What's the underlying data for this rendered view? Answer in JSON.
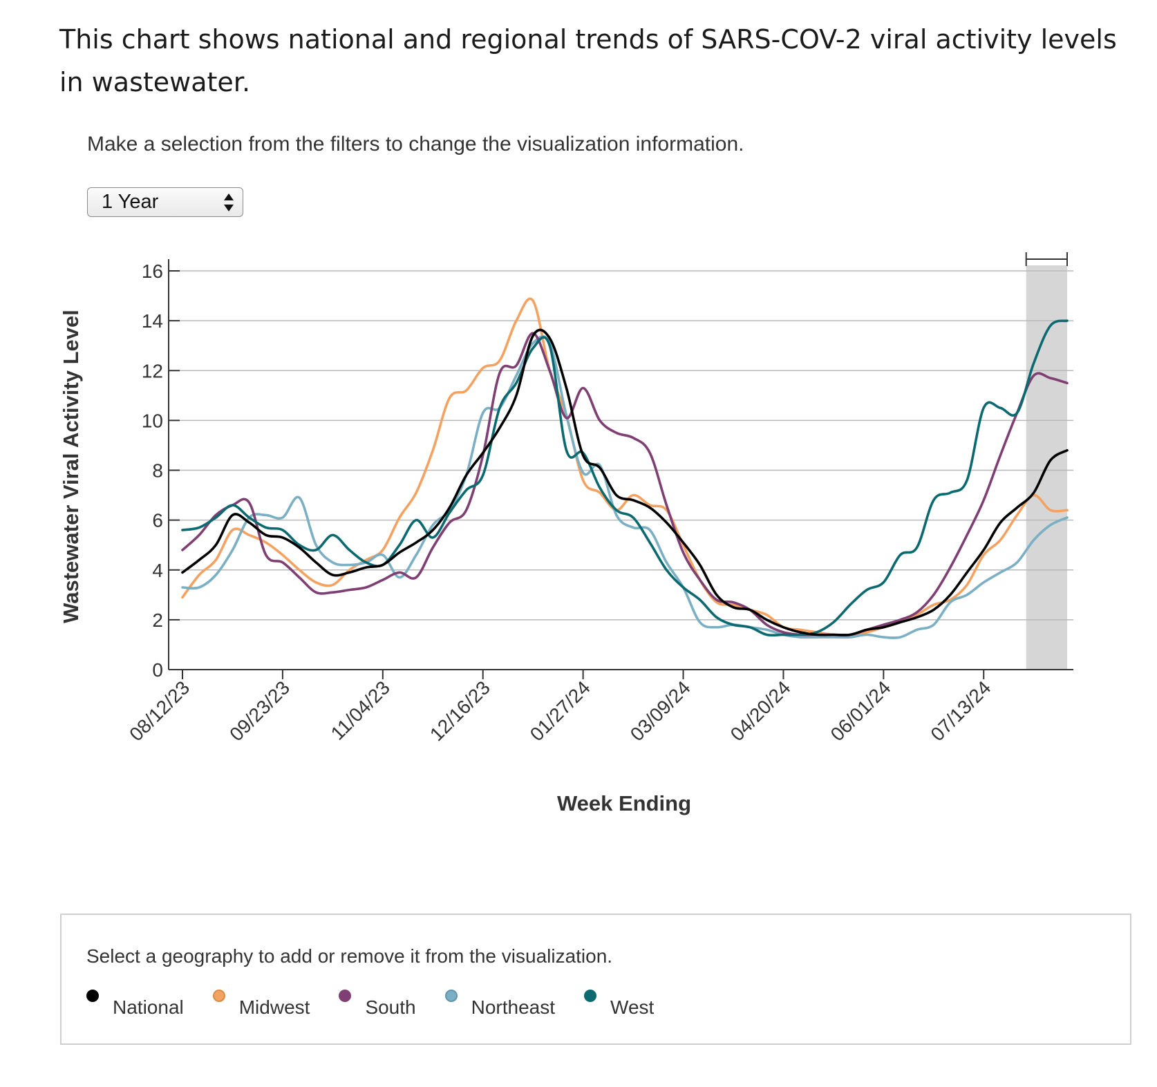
{
  "intro": "This chart shows national and regional trends of SARS-COV-2 viral activity levels in wastewater.",
  "instructions": "Make a selection from the filters to change the visualization information.",
  "range_select": {
    "selected": "1 Year"
  },
  "legend": {
    "title": "Select a geography to add or remove it from the visualization.",
    "items": [
      {
        "label": "National",
        "color": "#000000"
      },
      {
        "label": "Midwest",
        "color": "#F4A261"
      },
      {
        "label": "South",
        "color": "#7F3F73"
      },
      {
        "label": "Northeast",
        "color": "#7AAFC4"
      },
      {
        "label": "West",
        "color": "#0B6970"
      }
    ]
  },
  "chart_data": {
    "type": "line",
    "xlabel": "Week Ending",
    "ylabel": "Wastewater Viral Activity Level",
    "ylim": [
      0,
      16
    ],
    "yticks": [
      0,
      2,
      4,
      6,
      8,
      10,
      12,
      14,
      16
    ],
    "grid": "horizontal",
    "x_tick_labels": [
      "08/12/23",
      "09/23/23",
      "11/04/23",
      "12/16/23",
      "01/27/24",
      "03/09/24",
      "04/20/24",
      "06/01/24",
      "07/13/24"
    ],
    "x": [
      "2023-08-12",
      "2023-08-19",
      "2023-08-26",
      "2023-09-02",
      "2023-09-09",
      "2023-09-16",
      "2023-09-23",
      "2023-09-30",
      "2023-10-07",
      "2023-10-14",
      "2023-10-21",
      "2023-10-28",
      "2023-11-04",
      "2023-11-11",
      "2023-11-18",
      "2023-11-25",
      "2023-12-02",
      "2023-12-09",
      "2023-12-16",
      "2023-12-23",
      "2023-12-30",
      "2024-01-06",
      "2024-01-13",
      "2024-01-20",
      "2024-01-27",
      "2024-02-03",
      "2024-02-10",
      "2024-02-17",
      "2024-02-24",
      "2024-03-02",
      "2024-03-09",
      "2024-03-16",
      "2024-03-23",
      "2024-03-30",
      "2024-04-06",
      "2024-04-13",
      "2024-04-20",
      "2024-04-27",
      "2024-05-04",
      "2024-05-11",
      "2024-05-18",
      "2024-05-25",
      "2024-06-01",
      "2024-06-08",
      "2024-06-15",
      "2024-06-22",
      "2024-06-29",
      "2024-07-06",
      "2024-07-13",
      "2024-07-20",
      "2024-07-27",
      "2024-08-03",
      "2024-08-10",
      "2024-08-17"
    ],
    "provisional_period": [
      "2024-08-03",
      "2024-08-17"
    ],
    "series": [
      {
        "name": "National",
        "color": "#000000",
        "values": [
          3.9,
          4.4,
          5.0,
          6.2,
          5.9,
          5.4,
          5.3,
          4.9,
          4.3,
          3.8,
          3.9,
          4.1,
          4.2,
          4.7,
          5.1,
          5.6,
          6.5,
          7.8,
          8.7,
          9.7,
          11.0,
          13.4,
          13.3,
          11.3,
          8.6,
          8.1,
          7.0,
          6.8,
          6.5,
          5.9,
          5.1,
          4.2,
          3.0,
          2.5,
          2.4,
          2.0,
          1.7,
          1.5,
          1.4,
          1.4,
          1.4,
          1.6,
          1.7,
          1.9,
          2.1,
          2.4,
          3.0,
          3.9,
          4.8,
          5.9,
          6.5,
          7.1,
          8.4,
          8.8
        ]
      },
      {
        "name": "Midwest",
        "color": "#F4A261",
        "values": [
          2.9,
          3.8,
          4.4,
          5.6,
          5.4,
          5.1,
          4.6,
          4.0,
          3.5,
          3.4,
          4.0,
          4.4,
          4.8,
          6.1,
          7.1,
          8.8,
          10.9,
          11.2,
          12.1,
          12.4,
          14.0,
          14.8,
          12.0,
          10.2,
          7.6,
          7.1,
          6.4,
          7.0,
          6.6,
          6.4,
          5.0,
          3.6,
          2.7,
          2.6,
          2.4,
          2.2,
          1.7,
          1.6,
          1.5,
          1.4,
          1.4,
          1.5,
          1.7,
          1.9,
          2.2,
          2.6,
          2.8,
          3.4,
          4.6,
          5.2,
          6.2,
          7.0,
          6.4,
          6.4
        ]
      },
      {
        "name": "South",
        "color": "#7F3F73",
        "values": [
          4.8,
          5.4,
          6.2,
          6.6,
          6.7,
          4.6,
          4.3,
          3.7,
          3.1,
          3.1,
          3.2,
          3.3,
          3.6,
          3.9,
          3.7,
          4.9,
          5.9,
          6.4,
          8.6,
          11.9,
          12.2,
          13.5,
          12.0,
          10.1,
          11.3,
          10.0,
          9.5,
          9.3,
          8.7,
          6.6,
          4.7,
          3.6,
          2.8,
          2.7,
          2.4,
          1.8,
          1.5,
          1.4,
          1.4,
          1.4,
          1.4,
          1.6,
          1.8,
          2.0,
          2.3,
          3.0,
          4.1,
          5.4,
          6.8,
          8.6,
          10.3,
          11.8,
          11.7,
          11.5
        ]
      },
      {
        "name": "Northeast",
        "color": "#7AAFC4",
        "values": [
          3.3,
          3.3,
          3.8,
          4.8,
          6.1,
          6.2,
          6.1,
          6.9,
          5.0,
          4.3,
          4.2,
          4.3,
          4.6,
          3.7,
          4.6,
          5.8,
          6.4,
          7.8,
          10.3,
          10.5,
          11.8,
          13.1,
          13.1,
          10.2,
          7.9,
          8.2,
          6.2,
          5.7,
          5.6,
          4.3,
          3.3,
          1.9,
          1.7,
          1.8,
          1.7,
          1.6,
          1.4,
          1.3,
          1.3,
          1.3,
          1.3,
          1.4,
          1.3,
          1.3,
          1.6,
          1.8,
          2.7,
          3.0,
          3.5,
          3.9,
          4.3,
          5.2,
          5.8,
          6.1
        ]
      },
      {
        "name": "West",
        "color": "#0B6970",
        "values": [
          5.6,
          5.7,
          6.1,
          6.6,
          6.1,
          5.7,
          5.6,
          5.0,
          4.8,
          5.4,
          4.8,
          4.3,
          4.2,
          5.0,
          6.0,
          5.3,
          6.3,
          7.2,
          7.8,
          10.5,
          11.5,
          12.9,
          13.0,
          8.8,
          8.7,
          7.3,
          6.4,
          6.1,
          5.1,
          4.0,
          3.3,
          2.8,
          2.1,
          1.8,
          1.7,
          1.4,
          1.4,
          1.4,
          1.5,
          1.9,
          2.6,
          3.2,
          3.5,
          4.6,
          4.9,
          6.8,
          7.1,
          7.6,
          10.5,
          10.5,
          10.3,
          12.3,
          13.8,
          14.0
        ]
      }
    ]
  }
}
